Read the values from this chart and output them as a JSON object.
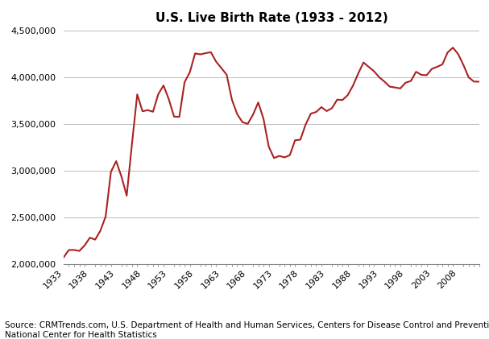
{
  "title": "U.S. Live Birth Rate (1933 - 2012)",
  "source_text": "Source: CRMTrends.com, U.S. Department of Health and Human Services, Centers for Disease Control and Prevention,\nNational Center for Health Statistics",
  "line_color": "#aa2222",
  "background_color": "#ffffff",
  "plot_bg_color": "#ffffff",
  "years": [
    1933,
    1934,
    1935,
    1936,
    1937,
    1938,
    1939,
    1940,
    1941,
    1942,
    1943,
    1944,
    1945,
    1946,
    1947,
    1948,
    1949,
    1950,
    1951,
    1952,
    1953,
    1954,
    1955,
    1956,
    1957,
    1958,
    1959,
    1960,
    1961,
    1962,
    1963,
    1964,
    1965,
    1966,
    1967,
    1968,
    1969,
    1970,
    1971,
    1972,
    1973,
    1974,
    1975,
    1976,
    1977,
    1978,
    1979,
    1980,
    1981,
    1982,
    1983,
    1984,
    1985,
    1986,
    1987,
    1988,
    1989,
    1990,
    1991,
    1992,
    1993,
    1994,
    1995,
    1996,
    1997,
    1998,
    1999,
    2000,
    2001,
    2002,
    2003,
    2004,
    2005,
    2006,
    2007,
    2008,
    2009,
    2010,
    2011,
    2012
  ],
  "births": [
    2075000,
    2154000,
    2155000,
    2144000,
    2203000,
    2286000,
    2265000,
    2360000,
    2513000,
    2989000,
    3104000,
    2939000,
    2735000,
    3289000,
    3817000,
    3637000,
    3649000,
    3632000,
    3820000,
    3913000,
    3765000,
    3580000,
    3577000,
    3948000,
    4055000,
    4255000,
    4245000,
    4258000,
    4268000,
    4167000,
    4098000,
    4027000,
    3760000,
    3606000,
    3521000,
    3502000,
    3600000,
    3731000,
    3556000,
    3258000,
    3137000,
    3160000,
    3144000,
    3168000,
    3327000,
    3333000,
    3494000,
    3612000,
    3629000,
    3681000,
    3639000,
    3669000,
    3761000,
    3757000,
    3809000,
    3910000,
    4040000,
    4158000,
    4111000,
    4065000,
    4000000,
    3953000,
    3900000,
    3891000,
    3881000,
    3942000,
    3960000,
    4059000,
    4026000,
    4022000,
    4090000,
    4112000,
    4138000,
    4266000,
    4317000,
    4248000,
    4131000,
    3999000,
    3954000,
    3953000
  ],
  "ylim": [
    2000000,
    4500000
  ],
  "yticks": [
    2000000,
    2500000,
    3000000,
    3500000,
    4000000,
    4500000
  ],
  "xticks": [
    1933,
    1938,
    1943,
    1948,
    1953,
    1958,
    1963,
    1968,
    1973,
    1978,
    1983,
    1988,
    1993,
    1998,
    2003,
    2008
  ],
  "xlim": [
    1933,
    2012
  ],
  "title_fontsize": 11,
  "tick_fontsize": 8,
  "source_fontsize": 7.5,
  "linewidth": 1.5
}
